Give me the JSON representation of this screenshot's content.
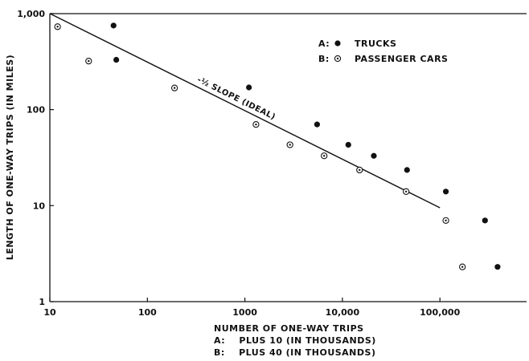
{
  "chart_data": {
    "type": "scatter",
    "x_scale": "log",
    "y_scale": "log",
    "xlim": [
      10,
      1000000
    ],
    "ylim": [
      1,
      1000
    ],
    "x_ticks": [
      10,
      100,
      1000,
      10000,
      100000
    ],
    "x_tick_labels": [
      "10",
      "100",
      "1000",
      "10,000",
      "100,000"
    ],
    "y_ticks": [
      1,
      10,
      100,
      1000
    ],
    "y_tick_labels": [
      "1",
      "10",
      "100",
      "1,000"
    ],
    "grid": false,
    "xlabel": "NUMBER OF ONE-WAY TRIPS",
    "xlabel_notes": [
      "A:    PLUS 10 (IN THOUSANDS)",
      "B:    PLUS 40 (IN THOUSANDS)"
    ],
    "ylabel": "LENGTH OF ONE-WAY TRIPS (IN MILES)",
    "legend_position": "top-right",
    "series": [
      {
        "name": "TRUCKS",
        "legend_prefix": "A:",
        "marker": "filled-circle",
        "points": [
          [
            45,
            750
          ],
          [
            48,
            330
          ],
          [
            1100,
            170
          ],
          [
            5500,
            70
          ],
          [
            11500,
            43
          ],
          [
            21000,
            33
          ],
          [
            46000,
            23.5
          ],
          [
            115000,
            14
          ],
          [
            290000,
            7
          ],
          [
            390000,
            2.3
          ]
        ]
      },
      {
        "name": "PASSENGER CARS",
        "legend_prefix": "B:",
        "marker": "dotted-circle",
        "points": [
          [
            12,
            730
          ],
          [
            25,
            320
          ],
          [
            190,
            168
          ],
          [
            1300,
            70
          ],
          [
            2900,
            43
          ],
          [
            6500,
            33
          ],
          [
            15000,
            23.5
          ],
          [
            45000,
            14
          ],
          [
            115000,
            7
          ],
          [
            170000,
            2.3
          ]
        ]
      }
    ],
    "reference_line": {
      "label": "-½ SLOPE (IDEAL)",
      "from": [
        10,
        1000
      ],
      "to": [
        100000,
        9.5
      ]
    }
  }
}
